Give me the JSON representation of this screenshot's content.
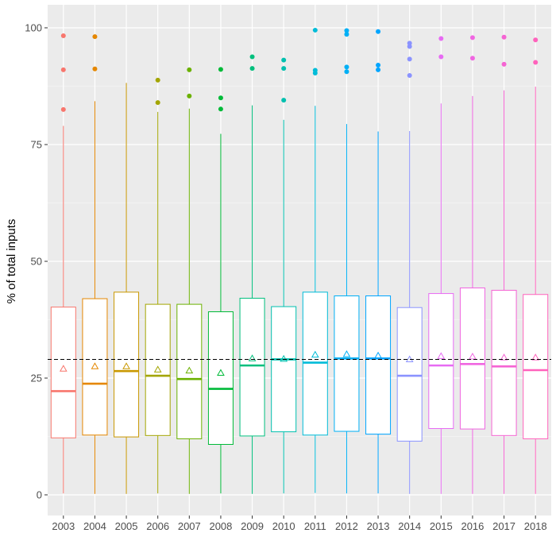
{
  "chart_data": {
    "type": "boxplot",
    "xlabel": "",
    "ylabel": "% of total inputs",
    "ylim": [
      0,
      100
    ],
    "y_ticks": [
      0,
      25,
      50,
      75,
      100
    ],
    "reference_line": 29,
    "grid": true,
    "legend": "none",
    "categories": [
      "2003",
      "2004",
      "2005",
      "2006",
      "2007",
      "2008",
      "2009",
      "2010",
      "2011",
      "2012",
      "2013",
      "2014",
      "2015",
      "2016",
      "2017",
      "2018"
    ],
    "colors": [
      "#F8766D",
      "#E58700",
      "#C99800",
      "#A3A500",
      "#6BB100",
      "#00BA38",
      "#00BF7D",
      "#00C0AF",
      "#00BCD8",
      "#00B0F6",
      "#00A5FF",
      "#8B93FF",
      "#E76BF3",
      "#F066E1",
      "#F564D3",
      "#FF62BC"
    ],
    "boxes": [
      {
        "q1": 12.2,
        "median": 22.2,
        "q3": 40.2,
        "whisker_low": 0.3,
        "whisker_high": 79.0,
        "mean": 27.0,
        "outliers": [
          82.5,
          91.0,
          98.3
        ]
      },
      {
        "q1": 12.8,
        "median": 23.8,
        "q3": 42.0,
        "whisker_low": 0.2,
        "whisker_high": 84.3,
        "mean": 27.5,
        "outliers": [
          91.2,
          98.1
        ]
      },
      {
        "q1": 12.4,
        "median": 26.5,
        "q3": 43.4,
        "whisker_low": 0.2,
        "whisker_high": 88.2,
        "mean": 27.5,
        "outliers": []
      },
      {
        "q1": 12.7,
        "median": 25.5,
        "q3": 40.8,
        "whisker_low": 0.3,
        "whisker_high": 82.0,
        "mean": 26.8,
        "outliers": [
          84.0,
          88.8
        ]
      },
      {
        "q1": 12.0,
        "median": 24.8,
        "q3": 40.8,
        "whisker_low": 0.2,
        "whisker_high": 82.7,
        "mean": 26.6,
        "outliers": [
          85.4,
          91.0
        ]
      },
      {
        "q1": 10.8,
        "median": 22.7,
        "q3": 39.2,
        "whisker_low": 0.3,
        "whisker_high": 77.3,
        "mean": 26.1,
        "outliers": [
          82.6,
          85.0,
          91.1
        ]
      },
      {
        "q1": 12.6,
        "median": 27.7,
        "q3": 42.1,
        "whisker_low": 0.2,
        "whisker_high": 83.4,
        "mean": 29.2,
        "outliers": [
          91.3,
          93.8
        ]
      },
      {
        "q1": 13.5,
        "median": 29.0,
        "q3": 40.3,
        "whisker_low": 0.3,
        "whisker_high": 80.3,
        "mean": 29.1,
        "outliers": [
          84.5,
          91.3,
          93.1
        ]
      },
      {
        "q1": 12.8,
        "median": 28.3,
        "q3": 43.4,
        "whisker_low": 0.4,
        "whisker_high": 83.3,
        "mean": 30.0,
        "outliers": [
          90.3,
          90.9,
          99.5
        ]
      },
      {
        "q1": 13.6,
        "median": 29.2,
        "q3": 42.6,
        "whisker_low": 0.3,
        "whisker_high": 79.4,
        "mean": 30.1,
        "outliers": [
          90.6,
          91.6,
          98.6,
          99.4
        ]
      },
      {
        "q1": 13.0,
        "median": 29.2,
        "q3": 42.6,
        "whisker_low": 0.3,
        "whisker_high": 77.8,
        "mean": 29.8,
        "outliers": [
          91.0,
          92.0,
          99.2
        ]
      },
      {
        "q1": 11.5,
        "median": 25.5,
        "q3": 40.1,
        "whisker_low": 0.2,
        "whisker_high": 77.9,
        "mean": 29.0,
        "outliers": [
          89.8,
          93.3,
          96.0,
          96.7
        ]
      },
      {
        "q1": 14.2,
        "median": 27.7,
        "q3": 43.1,
        "whisker_low": 0.2,
        "whisker_high": 83.8,
        "mean": 29.7,
        "outliers": [
          93.8,
          97.7
        ]
      },
      {
        "q1": 14.1,
        "median": 28.0,
        "q3": 44.3,
        "whisker_low": 0.2,
        "whisker_high": 85.4,
        "mean": 29.6,
        "outliers": [
          93.5,
          97.9
        ]
      },
      {
        "q1": 12.7,
        "median": 27.5,
        "q3": 43.8,
        "whisker_low": 0.2,
        "whisker_high": 86.6,
        "mean": 29.4,
        "outliers": [
          92.2,
          98.0
        ]
      },
      {
        "q1": 12.0,
        "median": 26.7,
        "q3": 42.9,
        "whisker_low": 0.2,
        "whisker_high": 87.4,
        "mean": 29.4,
        "outliers": [
          92.6,
          97.4
        ]
      }
    ]
  }
}
